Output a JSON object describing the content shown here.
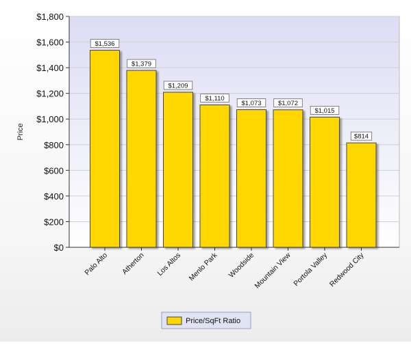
{
  "chart_data": {
    "type": "bar",
    "categories": [
      "Palo Alto",
      "Atherton",
      "Los Altos",
      "Menlo Park",
      "Woodside",
      "Mountain View",
      "Portola Valley",
      "Redwood City"
    ],
    "series": [
      {
        "name": "Price/SqFt Ratio",
        "values": [
          1536,
          1379,
          1209,
          1110,
          1073,
          1072,
          1015,
          814
        ],
        "color": "#ffd700"
      }
    ],
    "data_labels": [
      "$1,536",
      "$1,379",
      "$1,209",
      "$1,110",
      "$1,073",
      "$1,072",
      "$1,015",
      "$814"
    ],
    "ylabel": "Price",
    "xlabel": "",
    "ylim": [
      0,
      1800
    ],
    "yticks": [
      0,
      200,
      400,
      600,
      800,
      1000,
      1200,
      1400,
      1600,
      1800
    ],
    "ytick_labels": [
      "$0",
      "$200",
      "$400",
      "$600",
      "$800",
      "$1,000",
      "$1,200",
      "$1,400",
      "$1,600",
      "$1,800"
    ],
    "grid": true,
    "legend_position": "bottom-center",
    "colors": {
      "bar_fill": "#ffd700",
      "bar_stroke": "#444444",
      "plot_bg_top": "#dcdcf4",
      "plot_bg_bottom": "#ffffff",
      "grid": "#cfcfcf"
    }
  }
}
